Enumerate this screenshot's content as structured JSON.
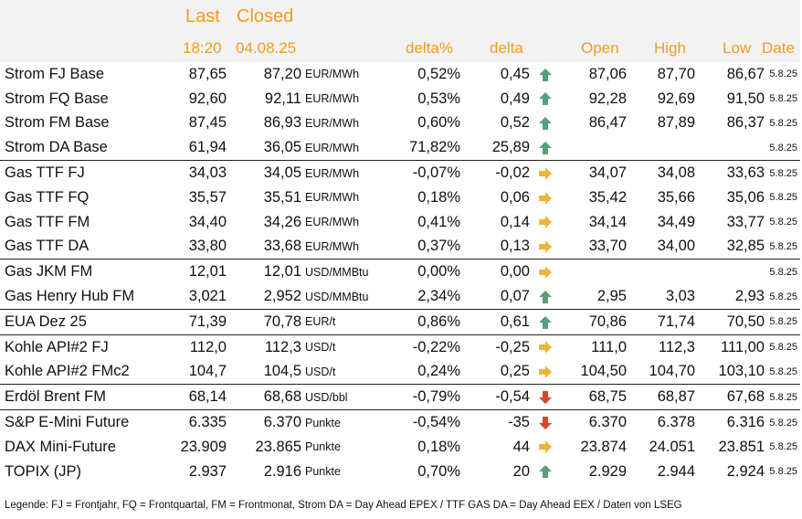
{
  "header": {
    "last_label": "Last",
    "closed_label": "Closed",
    "last_time": "18:20",
    "closed_date": "04.08.25",
    "delta_pct_label": "delta%",
    "delta_label": "delta",
    "open_label": "Open",
    "high_label": "High",
    "low_label": "Low",
    "date_label": "Date"
  },
  "colors": {
    "header_text": "#f29b1f",
    "header_bg": "#f2f2f2",
    "arrow_up": "#5a9e7a",
    "arrow_right": "#f0b43c",
    "arrow_down": "#d8452b"
  },
  "rows": [
    {
      "name": "Strom FJ Base",
      "last": "87,65",
      "closed": "87,20",
      "unit": "EUR/MWh",
      "delta_pct": "0,52%",
      "delta": "0,45",
      "trend": "up-arrow-icon",
      "open": "87,06",
      "high": "87,70",
      "low": "86,67",
      "date": "5.8.25",
      "sep": false
    },
    {
      "name": "Strom FQ Base",
      "last": "92,60",
      "closed": "92,11",
      "unit": "EUR/MWh",
      "delta_pct": "0,53%",
      "delta": "0,49",
      "trend": "up-arrow-icon",
      "open": "92,28",
      "high": "92,69",
      "low": "91,50",
      "date": "5.8.25",
      "sep": false
    },
    {
      "name": "Strom FM Base",
      "last": "87,45",
      "closed": "86,93",
      "unit": "EUR/MWh",
      "delta_pct": "0,60%",
      "delta": "0,52",
      "trend": "up-arrow-icon",
      "open": "86,47",
      "high": "87,89",
      "low": "86,37",
      "date": "5.8.25",
      "sep": false
    },
    {
      "name": "Strom DA Base",
      "last": "61,94",
      "closed": "36,05",
      "unit": "EUR/MWh",
      "delta_pct": "71,82%",
      "delta": "25,89",
      "trend": "up-arrow-icon",
      "open": "",
      "high": "",
      "low": "",
      "date": "5.8.25",
      "sep": false
    },
    {
      "name": "Gas TTF FJ",
      "last": "34,03",
      "closed": "34,05",
      "unit": "EUR/MWh",
      "delta_pct": "-0,07%",
      "delta": "-0,02",
      "trend": "right-arrow-icon",
      "open": "34,07",
      "high": "34,08",
      "low": "33,63",
      "date": "5.8.25",
      "sep": true
    },
    {
      "name": "Gas TTF FQ",
      "last": "35,57",
      "closed": "35,51",
      "unit": "EUR/MWh",
      "delta_pct": "0,18%",
      "delta": "0,06",
      "trend": "right-arrow-icon",
      "open": "35,42",
      "high": "35,66",
      "low": "35,06",
      "date": "5.8.25",
      "sep": false
    },
    {
      "name": "Gas TTF FM",
      "last": "34,40",
      "closed": "34,26",
      "unit": "EUR/MWh",
      "delta_pct": "0,41%",
      "delta": "0,14",
      "trend": "right-arrow-icon",
      "open": "34,14",
      "high": "34,49",
      "low": "33,77",
      "date": "5.8.25",
      "sep": false
    },
    {
      "name": "Gas TTF DA",
      "last": "33,80",
      "closed": "33,68",
      "unit": "EUR/MWh",
      "delta_pct": "0,37%",
      "delta": "0,13",
      "trend": "right-arrow-icon",
      "open": "33,70",
      "high": "34,00",
      "low": "32,85",
      "date": "5.8.25",
      "sep": false
    },
    {
      "name": "Gas JKM FM",
      "last": "12,01",
      "closed": "12,01",
      "unit": "USD/MMBtu",
      "delta_pct": "0,00%",
      "delta": "0,00",
      "trend": "right-arrow-icon",
      "open": "",
      "high": "",
      "low": "",
      "date": "5.8.25",
      "sep": true
    },
    {
      "name": "Gas Henry Hub FM",
      "last": "3,021",
      "closed": "2,952",
      "unit": "USD/MMBtu",
      "delta_pct": "2,34%",
      "delta": "0,07",
      "trend": "up-arrow-icon",
      "open": "2,95",
      "high": "3,03",
      "low": "2,93",
      "date": "5.8.25",
      "sep": false
    },
    {
      "name": "EUA Dez 25",
      "last": "71,39",
      "closed": "70,78",
      "unit": "EUR/t",
      "delta_pct": "0,86%",
      "delta": "0,61",
      "trend": "up-arrow-icon",
      "open": "70,86",
      "high": "71,74",
      "low": "70,50",
      "date": "5.8.25",
      "sep": true
    },
    {
      "name": "Kohle API#2 FJ",
      "last": "112,0",
      "closed": "112,3",
      "unit": "USD/t",
      "delta_pct": "-0,22%",
      "delta": "-0,25",
      "trend": "right-arrow-icon",
      "open": "111,0",
      "high": "112,3",
      "low": "111,00",
      "date": "5.8.25",
      "sep": true
    },
    {
      "name": "Kohle API#2 FMc2",
      "last": "104,7",
      "closed": "104,5",
      "unit": "USD/t",
      "delta_pct": "0,24%",
      "delta": "0,25",
      "trend": "right-arrow-icon",
      "open": "104,50",
      "high": "104,70",
      "low": "103,10",
      "date": "5.8.25",
      "sep": false
    },
    {
      "name": "Erdöl Brent FM",
      "last": "68,14",
      "closed": "68,68",
      "unit": "USD/bbl",
      "delta_pct": "-0,79%",
      "delta": "-0,54",
      "trend": "down-arrow-icon",
      "open": "68,75",
      "high": "68,87",
      "low": "67,68",
      "date": "5.8.25",
      "sep": true
    },
    {
      "name": "S&P E-Mini Future",
      "last": "6.335",
      "closed": "6.370",
      "unit": "Punkte",
      "delta_pct": "-0,54%",
      "delta": "-35",
      "trend": "down-arrow-icon",
      "open": "6.370",
      "high": "6.378",
      "low": "6.316",
      "date": "5.8.25",
      "sep": true
    },
    {
      "name": "DAX Mini-Future",
      "last": "23.909",
      "closed": "23.865",
      "unit": "Punkte",
      "delta_pct": "0,18%",
      "delta": "44",
      "trend": "right-arrow-icon",
      "open": "23.874",
      "high": "24.051",
      "low": "23.851",
      "date": "5.8.25",
      "sep": false
    },
    {
      "name": "TOPIX (JP)",
      "last": "2.937",
      "closed": "2.916",
      "unit": "Punkte",
      "delta_pct": "0,70%",
      "delta": "20",
      "trend": "up-arrow-icon",
      "open": "2.929",
      "high": "2.944",
      "low": "2.924",
      "date": "5.8.25",
      "sep": false
    }
  ],
  "legend": "Legende: FJ = Frontjahr, FQ = Frontquartal, FM = Frontmonat, Strom DA = Day Ahead EPEX / TTF GAS DA = Day Ahead EEX / Daten von LSEG"
}
